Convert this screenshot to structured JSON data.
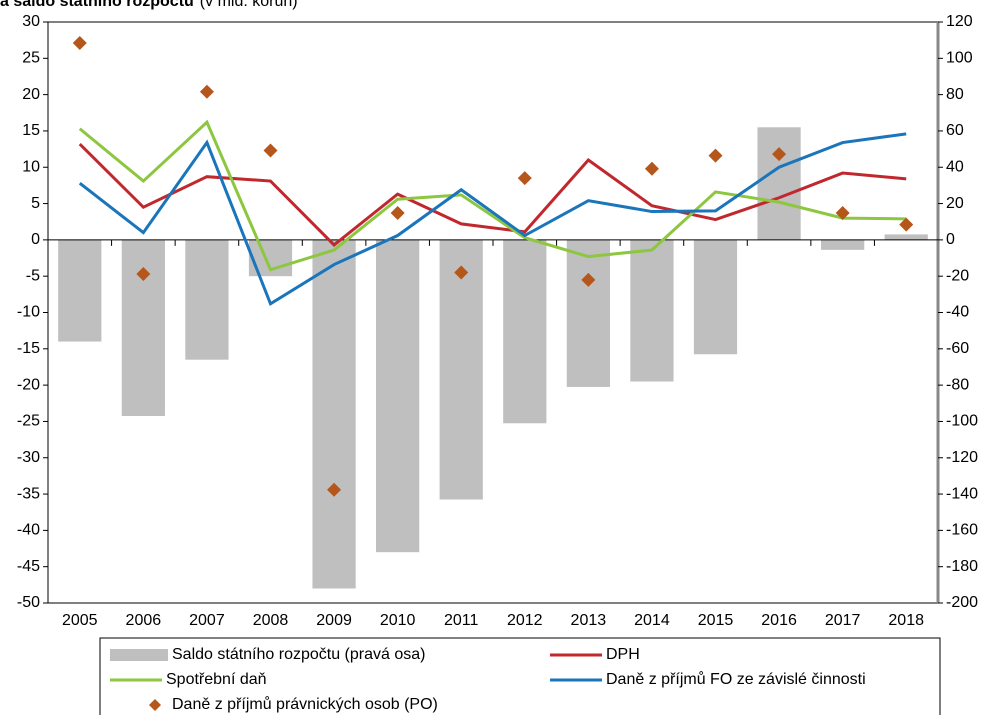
{
  "chart_data": {
    "type": "combo",
    "title": "a saldo státního rozpočtu",
    "subtitle": "(v mld. korun)",
    "categories": [
      "2005",
      "2006",
      "2007",
      "2008",
      "2009",
      "2010",
      "2011",
      "2012",
      "2013",
      "2014",
      "2015",
      "2016",
      "2017",
      "2018"
    ],
    "ylim": [
      -50,
      30
    ],
    "yticks": [
      -50,
      -45,
      -40,
      -35,
      -30,
      -25,
      -20,
      -15,
      -10,
      -5,
      0,
      5,
      10,
      15,
      20,
      25,
      30
    ],
    "y2lim": [
      -200,
      120
    ],
    "y2ticks": [
      -200,
      -180,
      -160,
      -140,
      -120,
      -100,
      -80,
      -60,
      -40,
      -20,
      0,
      20,
      40,
      60,
      80,
      100,
      120
    ],
    "series": [
      {
        "name": "Saldo státního rozpočtu (pravá osa)",
        "type": "bar",
        "axis": "y2",
        "color": "#bfbfbf",
        "values": [
          -56,
          -97,
          -66,
          -20,
          -192,
          -172,
          -143,
          -101,
          -81,
          -78,
          -63,
          62,
          -5.5,
          3
        ]
      },
      {
        "name": "DPH",
        "type": "line",
        "color": "#c0282d",
        "values": [
          13.2,
          4.5,
          8.7,
          8.1,
          -0.7,
          6.3,
          2.2,
          1.1,
          11.0,
          4.7,
          2.8,
          5.8,
          9.2,
          8.4
        ]
      },
      {
        "name": "Spotřební daň",
        "type": "line",
        "color": "#8dc63f",
        "values": [
          15.3,
          8.1,
          16.2,
          -4.1,
          -1.4,
          5.6,
          6.2,
          0.3,
          -2.3,
          -1.4,
          6.6,
          5.2,
          3.0,
          2.9
        ]
      },
      {
        "name": "Daně z příjmů FO ze závislé činnosti",
        "type": "line",
        "color": "#1a75bb",
        "values": [
          7.8,
          1.0,
          13.4,
          -8.8,
          -3.4,
          0.6,
          6.9,
          0.6,
          5.4,
          3.9,
          4.0,
          10.0,
          13.4,
          14.6
        ]
      },
      {
        "name": "Daně z příjmů právnických osob (PO)",
        "type": "scatter",
        "color": "#b5561b",
        "values": [
          27.1,
          -4.7,
          20.4,
          12.3,
          -34.4,
          3.7,
          -4.5,
          8.5,
          -5.5,
          9.8,
          11.6,
          11.8,
          3.7,
          2.1
        ]
      }
    ]
  }
}
